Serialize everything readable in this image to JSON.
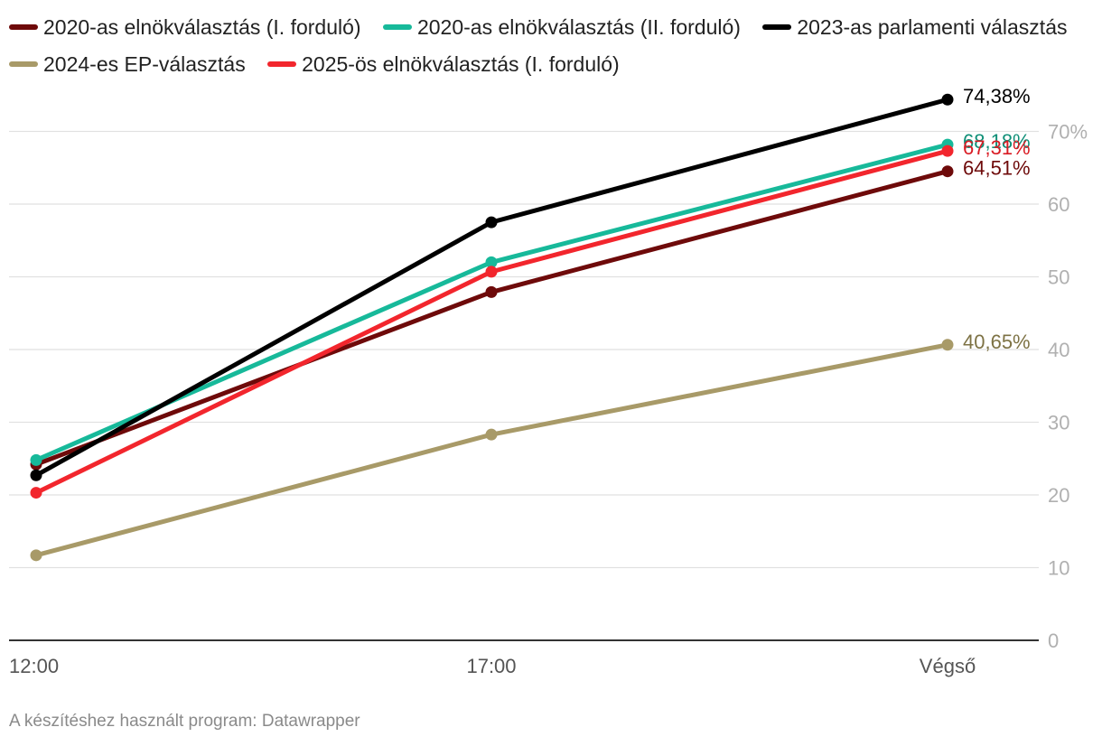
{
  "chart_data": {
    "type": "line",
    "title": "",
    "xlabel": "",
    "ylabel": "",
    "categories": [
      "12:00",
      "17:00",
      "Végső"
    ],
    "y_ticks": [
      {
        "value": 0,
        "label": "0"
      },
      {
        "value": 10,
        "label": "10"
      },
      {
        "value": 20,
        "label": "20"
      },
      {
        "value": 30,
        "label": "30"
      },
      {
        "value": 40,
        "label": "40"
      },
      {
        "value": 50,
        "label": "50"
      },
      {
        "value": 60,
        "label": "60"
      },
      {
        "value": 70,
        "label": "70%"
      }
    ],
    "ylim": [
      0,
      75
    ],
    "grid": true,
    "y_axis_position": "right",
    "legend_position": "top",
    "series": [
      {
        "name": "2020-as elnökválasztás (I. forduló)",
        "color": "#6e0a0a",
        "label_color": "#6e0a0a",
        "values": [
          24.2,
          47.9,
          64.51
        ],
        "end_label": "64,51%"
      },
      {
        "name": "2020-as elnökválasztás (II. forduló)",
        "color": "#17b99a",
        "label_color": "#0f8f77",
        "values": [
          24.8,
          52.0,
          68.18
        ],
        "end_label": "68,18%"
      },
      {
        "name": "2023-as parlamenti választás",
        "color": "#000000",
        "label_color": "#000000",
        "values": [
          22.7,
          57.5,
          74.38
        ],
        "end_label": "74,38%"
      },
      {
        "name": "2024-es EP-választás",
        "color": "#a89a68",
        "label_color": "#7d7244",
        "values": [
          11.7,
          28.3,
          40.65
        ],
        "end_label": "40,65%"
      },
      {
        "name": "2025-ös elnökválasztás (I. forduló)",
        "color": "#f2262d",
        "label_color": "#d91c24",
        "values": [
          20.3,
          50.7,
          67.31
        ],
        "end_label": "67,31%"
      }
    ]
  },
  "footer": {
    "credit": "A készítéshez használt program: Datawrapper"
  }
}
